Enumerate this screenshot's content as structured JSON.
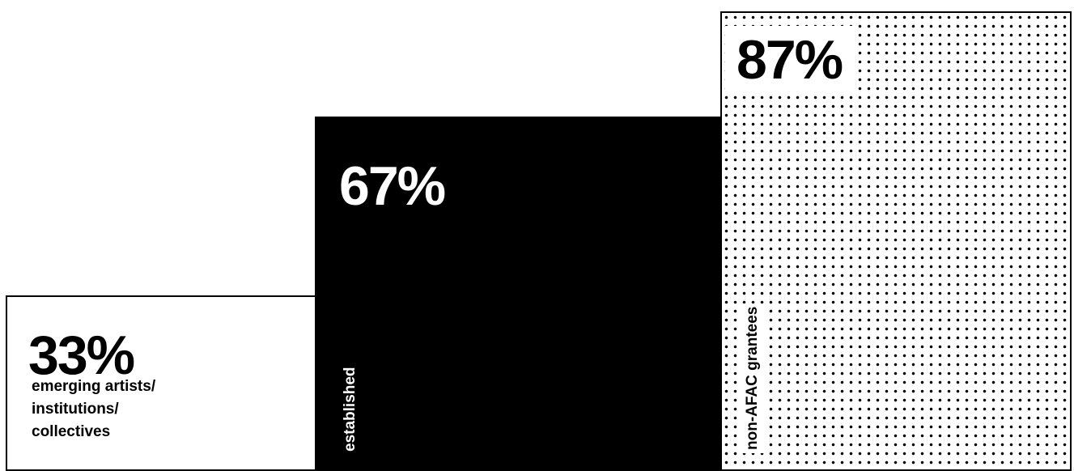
{
  "chart_data": {
    "type": "bar",
    "categories": [
      "emerging artists/\ninstitutions/\ncollectives",
      "established",
      "non-AFAC grantees"
    ],
    "values": [
      33,
      67,
      87
    ],
    "value_labels": [
      "33%",
      "67%",
      "87%"
    ],
    "unit": "%",
    "ylim": [
      0,
      100
    ],
    "grid": false,
    "legend": "none"
  },
  "colors": {
    "bar_1_fill": "#ffffff",
    "bar_2_fill": "#000000",
    "bar_3_fill": "dotted",
    "ink": "#000000",
    "background": "#ffffff"
  }
}
